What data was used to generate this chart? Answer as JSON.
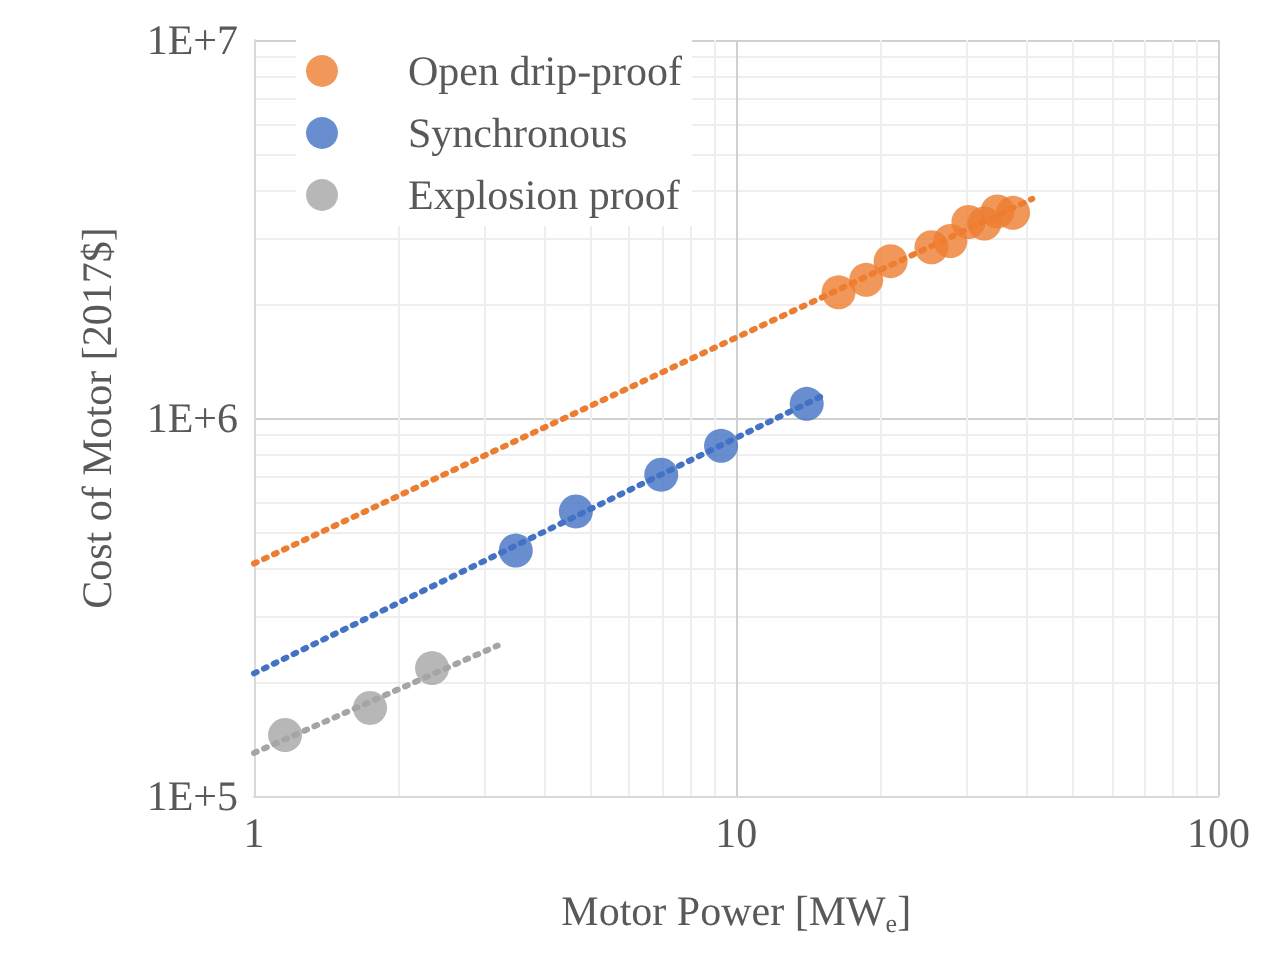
{
  "chart_data": {
    "type": "scatter",
    "xlabel": "Motor Power [MW$_{e}$]",
    "ylabel": "Cost of Motor [2017$]",
    "log": "xy",
    "grid": true,
    "legend": "top left",
    "marker": "circle",
    "xlim": [
      1,
      100
    ],
    "xticks": [
      1,
      10,
      100
    ],
    "ylim": [
      100000,
      10000000
    ],
    "yticks": [
      {
        "value": 100000,
        "label": "1E+5"
      },
      {
        "value": 1000000,
        "label": "1E+6"
      },
      {
        "value": 10000000,
        "label": "1E+7"
      }
    ],
    "series": [
      {
        "name": "Open drip-proof",
        "color": "#ed7d31",
        "x": [
          16.3,
          18.6,
          20.9,
          25.4,
          27.8,
          30.3,
          32.7,
          34.8,
          37.5
        ],
        "values": [
          2150000,
          2320000,
          2600000,
          2830000,
          2940000,
          3300000,
          3270000,
          3520000,
          3490000
        ]
      },
      {
        "name": "Synchronous",
        "color": "#4472c4",
        "x": [
          3.49,
          4.65,
          6.99,
          9.3,
          14.0
        ],
        "values": [
          446000,
          566000,
          708000,
          844000,
          1090000
        ]
      },
      {
        "name": "Explosion proof",
        "color": "#a5a5a5",
        "x": [
          1.16,
          1.74,
          2.34
        ],
        "values": [
          145000,
          171000,
          218000
        ]
      },
      {
        "type": "line",
        "line_style": "dotted",
        "marker": "none",
        "color": "#ed7d31",
        "x": [
          1,
          41.1
        ],
        "values": [
          412000,
          3800000
        ]
      },
      {
        "type": "line",
        "line_style": "dotted",
        "marker": "none",
        "color": "#4472c4",
        "x": [
          1,
          15.2
        ],
        "values": [
          211000,
          1150000
        ]
      },
      {
        "type": "line",
        "line_style": "dotted",
        "marker": "none",
        "color": "#a5a5a5",
        "x": [
          1,
          3.2
        ],
        "values": [
          130000,
          250000
        ]
      }
    ]
  }
}
